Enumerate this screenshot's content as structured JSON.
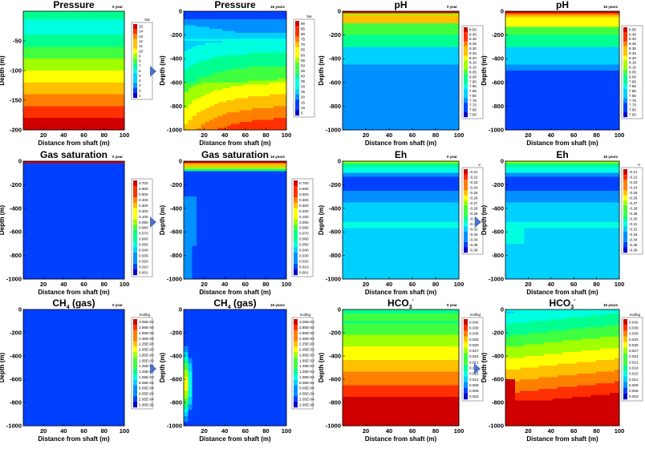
{
  "colors": {
    "scale": [
      "#0a00c8",
      "#0040ff",
      "#0090ff",
      "#00d0ff",
      "#00ffe0",
      "#00ff90",
      "#40ff40",
      "#a0ff00",
      "#ffff00",
      "#ffc000",
      "#ff8000",
      "#ff3000",
      "#d00000"
    ],
    "arrow": "#4a70c8",
    "axis": "#000000"
  },
  "chart_data": [
    {
      "id": "p0",
      "type": "heatmap",
      "title": "Pressure",
      "time_label": "0 year",
      "xlabel": "Distance from shaft (m)",
      "ylabel": "Depth (m)",
      "xlim": [
        0,
        100
      ],
      "ylim": [
        -200,
        0
      ],
      "xticks": [
        "20",
        "40",
        "60",
        "80",
        "100"
      ],
      "yticks": [
        "-50",
        "-100",
        "-150",
        "-200"
      ],
      "colorbar": {
        "unit": "bar",
        "labels": [
          "15",
          "14",
          "13",
          "12",
          "11",
          "10",
          "9",
          "8",
          "7",
          "6",
          "5",
          "4",
          "3",
          "2",
          "1"
        ]
      }
    },
    {
      "id": "p16",
      "type": "heatmap",
      "title": "Pressure",
      "time_label": "16 years",
      "xlabel": "Distance from shaft (m)",
      "ylabel": "Depth (m)",
      "xlim": [
        0,
        100
      ],
      "ylim": [
        -1000,
        0
      ],
      "xticks": [
        "20",
        "40",
        "60",
        "80",
        "100"
      ],
      "yticks": [
        "0",
        "-200",
        "-400",
        "-600",
        "-800",
        "-1000"
      ],
      "colorbar": {
        "unit": "bar",
        "labels": [
          "90",
          "85",
          "80",
          "75",
          "70",
          "65",
          "60",
          "55",
          "50",
          "45",
          "40",
          "35",
          "30",
          "25",
          "20",
          "15",
          "10",
          "5"
        ]
      }
    },
    {
      "id": "ph0",
      "type": "heatmap",
      "title": "pH",
      "time_label": "0 year",
      "xlabel": "Distance from shaft (m)",
      "ylabel": "Depth (m)",
      "xlim": [
        0,
        100
      ],
      "ylim": [
        -1000,
        0
      ],
      "xticks": [
        "20",
        "40",
        "60",
        "80",
        "100"
      ],
      "yticks": [
        "0",
        "-200",
        "-400",
        "-600",
        "-800",
        "-1000"
      ],
      "colorbar": {
        "unit": "",
        "labels": [
          "8.50",
          "8.45",
          "8.40",
          "8.35",
          "8.30",
          "8.25",
          "8.20",
          "8.15",
          "8.10",
          "8.05",
          "8.00",
          "7.95",
          "7.90",
          "7.85",
          "7.80",
          "7.75",
          "7.70",
          "7.65",
          "7.60"
        ]
      }
    },
    {
      "id": "ph16",
      "type": "heatmap",
      "title": "pH",
      "time_label": "16 years",
      "xlabel": "Distance from shaft (m)",
      "ylabel": "Depth (m)",
      "xlim": [
        0,
        100
      ],
      "ylim": [
        -1000,
        0
      ],
      "xticks": [
        "20",
        "40",
        "60",
        "80",
        "100"
      ],
      "yticks": [
        "0",
        "-200",
        "-400",
        "-600",
        "-800",
        "-1000"
      ],
      "colorbar": {
        "unit": "",
        "labels": [
          "8.50",
          "8.45",
          "8.40",
          "8.35",
          "8.30",
          "8.25",
          "8.20",
          "8.15",
          "8.10",
          "8.05",
          "8.00",
          "7.95",
          "7.90",
          "7.85",
          "7.80",
          "7.75",
          "7.70",
          "7.65",
          "7.60"
        ]
      }
    },
    {
      "id": "gs0",
      "type": "heatmap",
      "title": "Gas saturation",
      "time_label": "0 year",
      "xlabel": "Distance from shaft (m)",
      "ylabel": "Depth (m)",
      "xlim": [
        0,
        100
      ],
      "ylim": [
        -1000,
        0
      ],
      "xticks": [
        "20",
        "40",
        "60",
        "80",
        "100"
      ],
      "yticks": [
        "0",
        "-200",
        "-400",
        "-600",
        "-800",
        "-1000"
      ],
      "colorbar": {
        "unit": "",
        "labels": [
          "0.700",
          "0.600",
          "0.500",
          "0.400",
          "0.300",
          "0.200",
          "0.100",
          "0.090",
          "0.080",
          "0.070",
          "0.060",
          "0.050",
          "0.040",
          "0.030",
          "0.020",
          "0.010",
          "0.001"
        ]
      }
    },
    {
      "id": "gs16",
      "type": "heatmap",
      "title": "Gas saturation",
      "time_label": "16 years",
      "xlabel": "Distance from shaft (m)",
      "ylabel": "Depth (m)",
      "xlim": [
        0,
        100
      ],
      "ylim": [
        -1000,
        0
      ],
      "xticks": [
        "20",
        "40",
        "60",
        "80",
        "100"
      ],
      "yticks": [
        "0",
        "-200",
        "-400",
        "-600",
        "-800",
        "-1000"
      ],
      "colorbar": {
        "unit": "",
        "labels": [
          "0.700",
          "0.600",
          "0.500",
          "0.400",
          "0.300",
          "0.200",
          "0.100",
          "0.090",
          "0.080",
          "0.070",
          "0.060",
          "0.050",
          "0.040",
          "0.030",
          "0.020",
          "0.010",
          "0.001"
        ]
      }
    },
    {
      "id": "eh0",
      "type": "heatmap",
      "title": "Eh",
      "time_label": "0 year",
      "xlabel": "Distance from shaft (m)",
      "ylabel": "Depth (m)",
      "xlim": [
        0,
        100
      ],
      "ylim": [
        -1000,
        0
      ],
      "xticks": [
        "20",
        "40",
        "60",
        "80",
        "100"
      ],
      "yticks": [
        "0",
        "-200",
        "-400",
        "-600",
        "-800",
        "-1000"
      ],
      "colorbar": {
        "unit": "V",
        "labels": [
          "-0.21",
          "-0.22",
          "-0.23",
          "-0.24",
          "-0.25",
          "-0.26",
          "-0.27",
          "-0.28",
          "-0.29",
          "-0.30",
          "-0.31",
          "-0.32",
          "-0.33",
          "-0.34",
          "-0.35",
          "-0.36"
        ]
      }
    },
    {
      "id": "eh16",
      "type": "heatmap",
      "title": "Eh",
      "time_label": "16 years",
      "xlabel": "Distance from shaft (m)",
      "ylabel": "Depth (m)",
      "xlim": [
        0,
        100
      ],
      "ylim": [
        -1000,
        0
      ],
      "xticks": [
        "20",
        "40",
        "60",
        "80",
        "100"
      ],
      "yticks": [
        "0",
        "-200",
        "-400",
        "-600",
        "-800",
        "-1000"
      ],
      "colorbar": {
        "unit": "V",
        "labels": [
          "-0.21",
          "-0.22",
          "-0.23",
          "-0.24",
          "-0.25",
          "-0.26",
          "-0.27",
          "-0.28",
          "-0.29",
          "-0.30",
          "-0.31",
          "-0.32",
          "-0.33",
          "-0.34",
          "-0.35",
          "-0.36"
        ]
      }
    },
    {
      "id": "ch0",
      "type": "heatmap",
      "title": "CH",
      "title_sub": "4",
      "title_suffix": " (gas)",
      "time_label": "0 year",
      "xlabel": "Distance from shaft (m)",
      "ylabel": "Depth (m)",
      "xlim": [
        0,
        100
      ],
      "ylim": [
        -1000,
        0
      ],
      "xticks": [
        "20",
        "40",
        "60",
        "80",
        "100"
      ],
      "yticks": [
        "0",
        "-200",
        "-400",
        "-600",
        "-800",
        "-1000"
      ],
      "colorbar": {
        "unit": "mol/kg",
        "labels": [
          "3.05E-03",
          "2.85E-03",
          "2.65E-03",
          "2.45E-03",
          "2.25E-03",
          "2.05E-03",
          "1.85E-03",
          "1.65E-03",
          "1.45E-03",
          "1.25E-03",
          "1.05E-03",
          "8.05E-04",
          "6.05E-04",
          "4.05E-04",
          "2.05E-04",
          "1.00E-05"
        ]
      }
    },
    {
      "id": "ch16",
      "type": "heatmap",
      "title": "CH",
      "title_sub": "4",
      "title_suffix": " (gas)",
      "time_label": "16 years",
      "xlabel": "Distance from shaft (m)",
      "ylabel": "Depth (m)",
      "xlim": [
        0,
        100
      ],
      "ylim": [
        -1000,
        0
      ],
      "xticks": [
        "20",
        "40",
        "60",
        "80",
        "100"
      ],
      "yticks": [
        "0",
        "-200",
        "-400",
        "-600",
        "-800",
        "-1000"
      ],
      "colorbar": {
        "unit": "mol/kg",
        "labels": [
          "3.05E-03",
          "2.85E-03",
          "2.65E-03",
          "2.45E-03",
          "2.25E-03",
          "2.05E-03",
          "1.85E-03",
          "1.65E-03",
          "1.45E-03",
          "1.25E-03",
          "1.05E-03",
          "8.05E-04",
          "6.05E-04",
          "4.05E-04",
          "2.05E-04",
          "1.00E-05"
        ]
      }
    },
    {
      "id": "hc0",
      "type": "heatmap",
      "title": "HCO",
      "title_sub": "3",
      "title_sup": "-",
      "time_label": "0 year",
      "xlabel": "Distance from shaft (m)",
      "ylabel": "Depth (m)",
      "xlim": [
        0,
        100
      ],
      "ylim": [
        -1000,
        0
      ],
      "xticks": [
        "20",
        "40",
        "60",
        "80",
        "100"
      ],
      "yticks": [
        "0",
        "-200",
        "-400",
        "-600",
        "-800",
        "-1000"
      ],
      "colorbar": {
        "unit": "mol/kg",
        "labels": [
          "0.042",
          "0.039",
          "0.036",
          "0.033",
          "0.030",
          "0.027",
          "0.024",
          "0.021",
          "0.018",
          "0.015",
          "0.012",
          "0.009",
          "0.006",
          "0.003"
        ]
      }
    },
    {
      "id": "hc16",
      "type": "heatmap",
      "title": "HCO",
      "title_sub": "3",
      "title_sup": "-",
      "time_label": "16 years",
      "xlabel": "Distance from shaft (m)",
      "ylabel": "Depth (m)",
      "xlim": [
        0,
        100
      ],
      "ylim": [
        -1000,
        0
      ],
      "xticks": [
        "20",
        "40",
        "60",
        "80",
        "100"
      ],
      "yticks": [
        "0",
        "-200",
        "-400",
        "-600",
        "-800",
        "-1000"
      ],
      "colorbar": {
        "unit": "mol/kg",
        "labels": [
          "0.042",
          "0.039",
          "0.036",
          "0.033",
          "0.030",
          "0.027",
          "0.024",
          "0.021",
          "0.018",
          "0.015",
          "0.012",
          "0.009",
          "0.006",
          "0.003"
        ]
      }
    }
  ]
}
